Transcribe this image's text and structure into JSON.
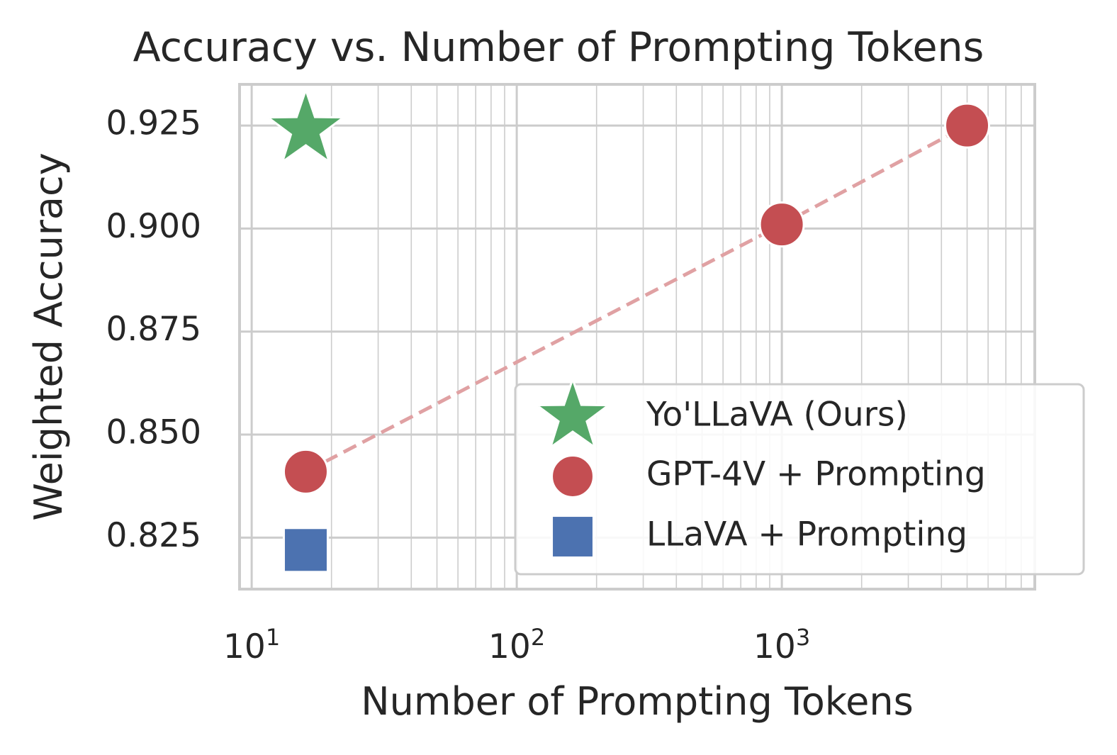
{
  "chart_data": {
    "type": "scatter",
    "title": "Accuracy vs. Number of Prompting Tokens",
    "xlabel": "Number of Prompting Tokens",
    "ylabel": "Weighted Accuracy",
    "x_scale": "log",
    "xlim": [
      9,
      9000
    ],
    "ylim": [
      0.8125,
      0.935
    ],
    "x_ticks": [
      {
        "value": 10,
        "base": "10",
        "exp": "1"
      },
      {
        "value": 100,
        "base": "10",
        "exp": "2"
      },
      {
        "value": 1000,
        "base": "10",
        "exp": "3"
      }
    ],
    "y_ticks": [
      {
        "value": 0.825,
        "label": "0.825"
      },
      {
        "value": 0.85,
        "label": "0.850"
      },
      {
        "value": 0.875,
        "label": "0.875"
      },
      {
        "value": 0.9,
        "label": "0.900"
      },
      {
        "value": 0.925,
        "label": "0.925"
      }
    ],
    "grid": true,
    "legend_position": "lower-right",
    "series": [
      {
        "name": "Yo'LLaVA (Ours)",
        "marker": "star",
        "color": "#55a868",
        "points": [
          {
            "x": 16,
            "y": 0.924
          }
        ]
      },
      {
        "name": "GPT-4V + Prompting",
        "marker": "circle",
        "color": "#c44e52",
        "line": "dashed",
        "line_color": "#e0a1a3",
        "points": [
          {
            "x": 16,
            "y": 0.841
          },
          {
            "x": 1000,
            "y": 0.901
          },
          {
            "x": 5000,
            "y": 0.925
          }
        ]
      },
      {
        "name": "LLaVA + Prompting",
        "marker": "square",
        "color": "#4c72b0",
        "points": [
          {
            "x": 16,
            "y": 0.822
          }
        ]
      }
    ]
  }
}
